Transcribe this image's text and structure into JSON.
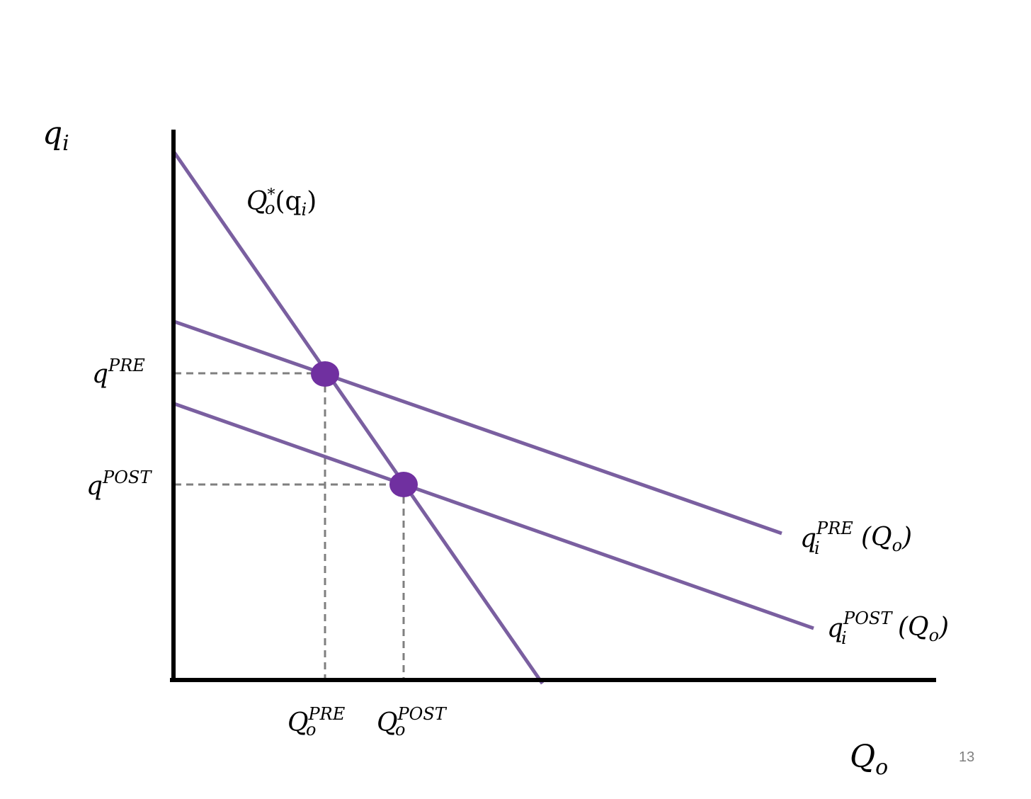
{
  "axes": {
    "y_label": {
      "base": "q",
      "sub": "i"
    },
    "x_label": {
      "base": "Q",
      "sub": "o"
    }
  },
  "curves": {
    "best_response": {
      "base": "Q",
      "sub": "o",
      "sup": "*",
      "arg": "(q",
      "arg_sub": "i",
      "arg_close": ")"
    },
    "pre": {
      "base": "q",
      "sub": "i",
      "sup": "PRE",
      "arg": "(Q",
      "arg_sub": "o",
      "arg_close": ")"
    },
    "post": {
      "base": "q",
      "sub": "i",
      "sup": "POST",
      "arg": "(Q",
      "arg_sub": "o",
      "arg_close": ")"
    }
  },
  "y_ticks": {
    "pre": {
      "base": "q",
      "sup": "PRE"
    },
    "post": {
      "base": "q",
      "sup": "POST"
    }
  },
  "x_ticks": {
    "pre": {
      "base": "Q",
      "sub": "o",
      "sup": "PRE"
    },
    "post": {
      "base": "Q",
      "sub": "o",
      "sup": "POST"
    }
  },
  "colors": {
    "curve": "#7a5fa0",
    "point": "#7030a0",
    "axis": "#000000",
    "guide": "#7f7f7f"
  },
  "slide_number": "13"
}
